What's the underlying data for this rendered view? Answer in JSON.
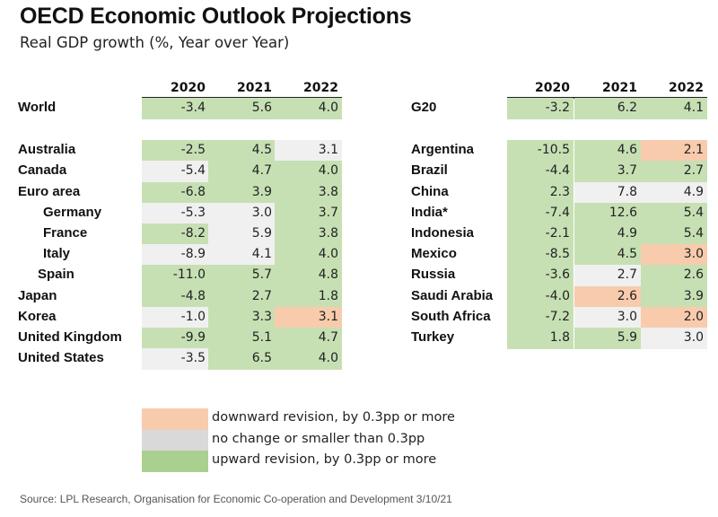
{
  "title": "OECD Economic Outlook Projections",
  "subtitle": "Real GDP growth (%, Year over Year)",
  "colors": {
    "down": "#f8cbad",
    "same": "#f0f0f0",
    "up": "#c6e0b4",
    "legend_down": "#f8cbad",
    "legend_same": "#d9d9d9",
    "legend_up": "#a9d08e"
  },
  "chart_data": {
    "type": "table",
    "title": "OECD Economic Outlook Projections",
    "subtitle": "Real GDP growth (%, Year over Year)",
    "columns": [
      "2020",
      "2021",
      "2022"
    ],
    "tables": [
      {
        "name": "left",
        "rows": [
          {
            "label": "World",
            "indent": 0,
            "values": [
              -3.4,
              5.6,
              4.0
            ],
            "revisions": [
              "up",
              "up",
              "up"
            ],
            "gap_after": true
          },
          {
            "label": "Australia",
            "indent": 0,
            "values": [
              -2.5,
              4.5,
              3.1
            ],
            "revisions": [
              "up",
              "up",
              "same"
            ]
          },
          {
            "label": "Canada",
            "indent": 0,
            "values": [
              -5.4,
              4.7,
              4.0
            ],
            "revisions": [
              "same",
              "up",
              "up"
            ]
          },
          {
            "label": "Euro area",
            "indent": 0,
            "values": [
              -6.8,
              3.9,
              3.8
            ],
            "revisions": [
              "up",
              "up",
              "up"
            ]
          },
          {
            "label": "Germany",
            "indent": 2,
            "values": [
              -5.3,
              3.0,
              3.7
            ],
            "revisions": [
              "same",
              "same",
              "up"
            ]
          },
          {
            "label": "France",
            "indent": 2,
            "values": [
              -8.2,
              5.9,
              3.8
            ],
            "revisions": [
              "up",
              "same",
              "up"
            ]
          },
          {
            "label": "Italy",
            "indent": 2,
            "values": [
              -8.9,
              4.1,
              4.0
            ],
            "revisions": [
              "same",
              "same",
              "up"
            ]
          },
          {
            "label": "Spain",
            "indent": 1,
            "values": [
              -11.0,
              5.7,
              4.8
            ],
            "revisions": [
              "up",
              "up",
              "up"
            ]
          },
          {
            "label": "Japan",
            "indent": 0,
            "values": [
              -4.8,
              2.7,
              1.8
            ],
            "revisions": [
              "up",
              "up",
              "up"
            ]
          },
          {
            "label": "Korea",
            "indent": 0,
            "values": [
              -1.0,
              3.3,
              3.1
            ],
            "revisions": [
              "same",
              "up",
              "down"
            ]
          },
          {
            "label": "United Kingdom",
            "indent": 0,
            "values": [
              -9.9,
              5.1,
              4.7
            ],
            "revisions": [
              "up",
              "up",
              "up"
            ]
          },
          {
            "label": "United States",
            "indent": 0,
            "values": [
              -3.5,
              6.5,
              4.0
            ],
            "revisions": [
              "same",
              "up",
              "up"
            ]
          }
        ]
      },
      {
        "name": "right",
        "rows": [
          {
            "label": "G20",
            "indent": 0,
            "values": [
              -3.2,
              6.2,
              4.1
            ],
            "revisions": [
              "up",
              "up",
              "up"
            ],
            "gap_after": true
          },
          {
            "label": "Argentina",
            "indent": 0,
            "values": [
              -10.5,
              4.6,
              2.1
            ],
            "revisions": [
              "up",
              "up",
              "down"
            ]
          },
          {
            "label": "Brazil",
            "indent": 0,
            "values": [
              -4.4,
              3.7,
              2.7
            ],
            "revisions": [
              "up",
              "up",
              "up"
            ]
          },
          {
            "label": "China",
            "indent": 0,
            "values": [
              2.3,
              7.8,
              4.9
            ],
            "revisions": [
              "up",
              "same",
              "same"
            ]
          },
          {
            "label": "India*",
            "indent": 0,
            "values": [
              -7.4,
              12.6,
              5.4
            ],
            "revisions": [
              "up",
              "up",
              "up"
            ]
          },
          {
            "label": "Indonesia",
            "indent": 0,
            "values": [
              -2.1,
              4.9,
              5.4
            ],
            "revisions": [
              "up",
              "up",
              "up"
            ]
          },
          {
            "label": "Mexico",
            "indent": 0,
            "values": [
              -8.5,
              4.5,
              3.0
            ],
            "revisions": [
              "up",
              "up",
              "down"
            ]
          },
          {
            "label": "Russia",
            "indent": 0,
            "values": [
              -3.6,
              2.7,
              2.6
            ],
            "revisions": [
              "up",
              "same",
              "up"
            ]
          },
          {
            "label": "Saudi Arabia",
            "indent": 0,
            "values": [
              -4.0,
              2.6,
              3.9
            ],
            "revisions": [
              "up",
              "down",
              "up"
            ]
          },
          {
            "label": "South Africa",
            "indent": 0,
            "values": [
              -7.2,
              3.0,
              2.0
            ],
            "revisions": [
              "up",
              "same",
              "down"
            ]
          },
          {
            "label": "Turkey",
            "indent": 0,
            "values": [
              1.8,
              5.9,
              3.0
            ],
            "revisions": [
              "up",
              "up",
              "same"
            ]
          }
        ]
      }
    ],
    "legend": [
      {
        "key": "down",
        "label": "downward revision, by 0.3pp or more"
      },
      {
        "key": "same",
        "label": "no change or smaller than 0.3pp"
      },
      {
        "key": "up",
        "label": "upward revision, by 0.3pp or more"
      }
    ]
  },
  "source": "Source: LPL Research, Organisation for Economic Co-operation and Development  3/10/21"
}
